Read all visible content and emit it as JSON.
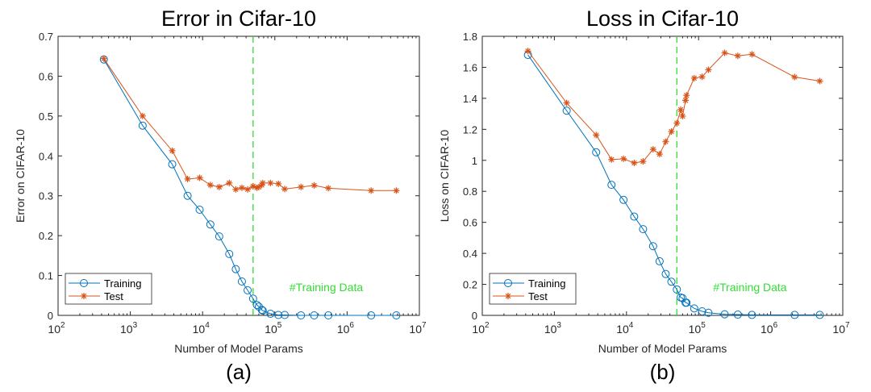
{
  "chart_data": [
    {
      "type": "line",
      "panel_label": "(a)",
      "title": "Error in Cifar-10",
      "xlabel": "Number of Model Params",
      "ylabel": "Error on CIFAR-10",
      "xscale": "log",
      "xlim": [
        100,
        10000000
      ],
      "ylim": [
        0,
        0.7
      ],
      "xticks": [
        {
          "base": "10",
          "exp": "2"
        },
        {
          "base": "10",
          "exp": "3"
        },
        {
          "base": "10",
          "exp": "4"
        },
        {
          "base": "10",
          "exp": "5"
        },
        {
          "base": "10",
          "exp": "6"
        },
        {
          "base": "10",
          "exp": "7"
        }
      ],
      "yticks": [
        "0",
        "0.1",
        "0.2",
        "0.3",
        "0.4",
        "0.5",
        "0.6",
        "0.7"
      ],
      "ytick_values": [
        0,
        0.1,
        0.2,
        0.3,
        0.4,
        0.5,
        0.6,
        0.7
      ],
      "legend": {
        "placement": "bottom-left",
        "entries": [
          "Training",
          "Test"
        ]
      },
      "vline": {
        "x": 50000,
        "label": "#Training Data"
      },
      "x": [
        430,
        1480,
        3800,
        6200,
        9100,
        12800,
        17000,
        23400,
        28800,
        35000,
        42000,
        50000,
        56500,
        60000,
        66000,
        68000,
        87000,
        112000,
        137000,
        230000,
        350000,
        550000,
        2150000,
        4800000
      ],
      "series": [
        {
          "name": "Training",
          "color": "#0072BD",
          "marker": "circle",
          "values": [
            0.642,
            0.476,
            0.379,
            0.3,
            0.265,
            0.228,
            0.198,
            0.154,
            0.116,
            0.085,
            0.063,
            0.042,
            0.026,
            0.022,
            0.014,
            0.012,
            0.004,
            0.001,
            0.001,
            0,
            0,
            0,
            0,
            0
          ]
        },
        {
          "name": "Test",
          "color": "#D95319",
          "marker": "star",
          "values": [
            0.644,
            0.5,
            0.413,
            0.342,
            0.345,
            0.327,
            0.322,
            0.332,
            0.316,
            0.32,
            0.316,
            0.324,
            0.32,
            0.322,
            0.327,
            0.332,
            0.332,
            0.33,
            0.317,
            0.322,
            0.326,
            0.319,
            0.313,
            0.313
          ]
        }
      ]
    },
    {
      "type": "line",
      "panel_label": "(b)",
      "title": "Loss in Cifar-10",
      "xlabel": "Number of Model Params",
      "ylabel": "Loss on CIFAR-10",
      "xscale": "log",
      "xlim": [
        100,
        10000000
      ],
      "ylim": [
        0,
        1.8
      ],
      "xticks": [
        {
          "base": "10",
          "exp": "2"
        },
        {
          "base": "10",
          "exp": "3"
        },
        {
          "base": "10",
          "exp": "4"
        },
        {
          "base": "10",
          "exp": "5"
        },
        {
          "base": "10",
          "exp": "6"
        },
        {
          "base": "10",
          "exp": "7"
        }
      ],
      "yticks": [
        "0",
        "0.2",
        "0.4",
        "0.6",
        "0.8",
        "1",
        "1.2",
        "1.4",
        "1.6",
        "1.8"
      ],
      "ytick_values": [
        0,
        0.2,
        0.4,
        0.6,
        0.8,
        1,
        1.2,
        1.4,
        1.6,
        1.8
      ],
      "legend": {
        "placement": "bottom-left",
        "entries": [
          "Training",
          "Test"
        ]
      },
      "vline": {
        "x": 50000,
        "label": "#Training Data"
      },
      "x": [
        430,
        1480,
        3800,
        6200,
        9100,
        12800,
        17000,
        23400,
        28800,
        35000,
        42000,
        50000,
        56500,
        60000,
        66000,
        68000,
        87000,
        112000,
        137000,
        230000,
        350000,
        550000,
        2150000,
        4800000
      ],
      "series": [
        {
          "name": "Training",
          "color": "#0072BD",
          "marker": "circle",
          "values": [
            1.68,
            1.32,
            1.052,
            0.842,
            0.745,
            0.637,
            0.556,
            0.446,
            0.349,
            0.267,
            0.217,
            0.167,
            0.116,
            0.111,
            0.082,
            0.082,
            0.045,
            0.026,
            0.017,
            0.007,
            0.005,
            0.003,
            0.003,
            0.003
          ]
        },
        {
          "name": "Test",
          "color": "#D95319",
          "marker": "star",
          "values": [
            1.705,
            1.37,
            1.163,
            1.005,
            1.01,
            0.983,
            0.993,
            1.071,
            1.04,
            1.12,
            1.186,
            1.24,
            1.327,
            1.285,
            1.387,
            1.419,
            1.53,
            1.539,
            1.584,
            1.693,
            1.674,
            1.684,
            1.537,
            1.511
          ]
        }
      ]
    }
  ]
}
